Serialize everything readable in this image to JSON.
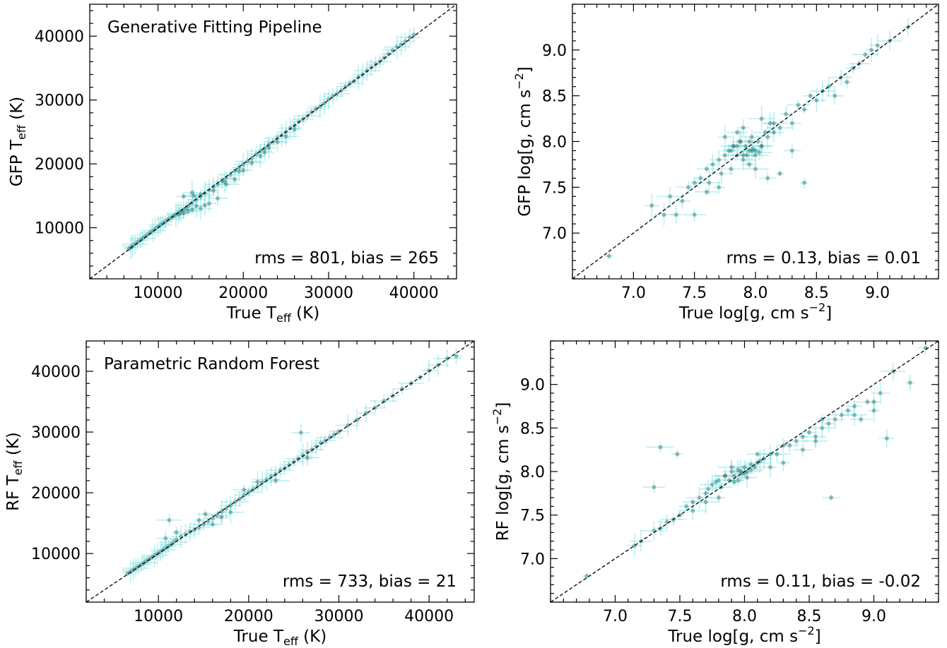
{
  "chart_data": [
    {
      "id": "tl",
      "type": "scatter",
      "title": "Generative Fitting Pipeline",
      "xlabel": "True T",
      "xlabel_sub": "eff",
      "xlabel_suffix": " (K)",
      "ylabel": "GFP T",
      "ylabel_sub": "eff",
      "ylabel_suffix": " (K)",
      "annotation": "rms = 801, bias = 265",
      "xlim": [
        2000,
        45000
      ],
      "ylim": [
        2000,
        45000
      ],
      "xticks": [
        10000,
        20000,
        30000,
        40000
      ],
      "yticks": [
        10000,
        20000,
        30000,
        40000
      ],
      "xtick_labels": [
        "10000",
        "20000",
        "30000",
        "40000"
      ],
      "ytick_labels": [
        "10000",
        "20000",
        "30000",
        "40000"
      ],
      "minor_step": 2000,
      "x": [
        6600,
        6800,
        7000,
        7300,
        7600,
        7900,
        8200,
        8500,
        8800,
        9100,
        9400,
        9700,
        10000,
        10300,
        10600,
        10900,
        11200,
        11500,
        11800,
        12100,
        12400,
        12700,
        13000,
        13300,
        13600,
        14000,
        14500,
        15000,
        15500,
        16000,
        16500,
        17000,
        17500,
        18000,
        18500,
        19000,
        19500,
        20000,
        20500,
        21000,
        21500,
        22000,
        22500,
        23000,
        23500,
        24000,
        24500,
        25000,
        25500,
        26000,
        26500,
        27000,
        27500,
        28000,
        28500,
        29000,
        29500,
        30000,
        30500,
        31000,
        31500,
        32000,
        32500,
        33000,
        33500,
        34000,
        34500,
        35000,
        35500,
        36000,
        36500,
        37000,
        37500,
        38000,
        38500,
        39000,
        39500,
        40000,
        12500,
        13000,
        13500,
        14000,
        14500,
        15000,
        15500,
        16000,
        17000,
        18000,
        19000,
        20000,
        21000,
        22000,
        23000,
        24000,
        25000,
        26000,
        14200,
        15000,
        16500,
        13000,
        14000,
        17800,
        19500,
        22500
      ],
      "y": [
        6700,
        6900,
        7150,
        7450,
        7750,
        8050,
        8350,
        8650,
        8950,
        9250,
        9550,
        9850,
        10150,
        10450,
        10750,
        11000,
        11300,
        11550,
        11800,
        12050,
        12300,
        12550,
        12800,
        13100,
        13500,
        13900,
        14400,
        14900,
        15400,
        15900,
        16400,
        16800,
        17300,
        17800,
        18300,
        18900,
        19400,
        19900,
        20400,
        20900,
        21500,
        22000,
        22400,
        23000,
        23500,
        24000,
        24500,
        25000,
        25600,
        26000,
        26600,
        27000,
        27500,
        28100,
        28600,
        29000,
        29500,
        30100,
        30600,
        31000,
        31500,
        32100,
        32600,
        33000,
        33600,
        34000,
        34600,
        35100,
        35600,
        36000,
        36600,
        37200,
        37800,
        38300,
        38700,
        39200,
        39800,
        40200,
        12100,
        12300,
        12600,
        12800,
        13400,
        13000,
        13500,
        13800,
        14600,
        16800,
        17600,
        19000,
        20200,
        21200,
        22500,
        23400,
        24300,
        25400,
        15000,
        15200,
        15800,
        14900,
        15500,
        17200,
        18800,
        21800
      ],
      "diagonal": true
    },
    {
      "id": "tr",
      "type": "scatter",
      "xlabel": "True log[g,  cm s",
      "xlabel_sup": "−2",
      "xlabel_suffix": "]",
      "ylabel": "GFP log[g,  cm s",
      "ylabel_sup": "−2",
      "ylabel_suffix": "]",
      "annotation": "rms = 0.13, bias = 0.01",
      "xlim": [
        6.5,
        9.5
      ],
      "ylim": [
        6.5,
        9.5
      ],
      "xticks": [
        7.0,
        7.5,
        8.0,
        8.5,
        9.0
      ],
      "yticks": [
        7.0,
        7.5,
        8.0,
        8.5,
        9.0
      ],
      "xtick_labels": [
        "7.0",
        "7.5",
        "8.0",
        "8.5",
        "9.0"
      ],
      "ytick_labels": [
        "7.0",
        "7.5",
        "8.0",
        "8.5",
        "9.0"
      ],
      "minor_step": 0.1,
      "x": [
        6.8,
        7.15,
        7.25,
        7.3,
        7.35,
        7.4,
        7.45,
        7.5,
        7.55,
        7.6,
        7.62,
        7.65,
        7.7,
        7.72,
        7.75,
        7.78,
        7.8,
        7.82,
        7.85,
        7.87,
        7.9,
        7.92,
        7.95,
        7.97,
        8.0,
        8.02,
        8.05,
        8.08,
        8.1,
        8.12,
        8.15,
        8.2,
        8.25,
        8.3,
        8.35,
        8.4,
        8.45,
        8.5,
        8.55,
        8.6,
        8.65,
        8.7,
        8.75,
        8.8,
        8.85,
        8.9,
        8.95,
        9.0,
        9.1,
        9.25,
        7.8,
        7.85,
        7.9,
        7.95,
        8.0,
        8.05,
        7.88,
        7.93,
        7.98,
        8.03,
        7.7,
        8.1,
        7.6,
        8.2,
        7.75,
        8.15,
        8.0,
        7.9,
        8.3,
        7.5,
        8.4,
        7.95,
        7.85,
        8.05,
        7.82,
        7.97
      ],
      "y": [
        6.75,
        7.3,
        7.2,
        7.4,
        7.2,
        7.35,
        7.5,
        7.55,
        7.6,
        7.7,
        7.55,
        7.75,
        7.8,
        7.65,
        7.85,
        7.9,
        7.7,
        7.95,
        7.85,
        8.0,
        7.8,
        7.95,
        7.9,
        8.05,
        7.85,
        8.0,
        7.95,
        8.1,
        8.05,
        8.2,
        8.1,
        8.15,
        8.3,
        8.2,
        8.4,
        8.35,
        8.5,
        8.45,
        8.55,
        8.6,
        8.5,
        8.7,
        8.65,
        8.8,
        8.85,
        8.95,
        9.0,
        9.05,
        9.1,
        9.25,
        7.9,
        7.95,
        7.85,
        8.0,
        7.9,
        7.95,
        8.0,
        7.85,
        7.92,
        7.88,
        7.5,
        7.6,
        7.45,
        7.65,
        8.05,
        8.2,
        7.7,
        8.15,
        7.9,
        7.2,
        7.55,
        7.75,
        8.1,
        8.25,
        7.95,
        7.9
      ],
      "diagonal": true
    },
    {
      "id": "bl",
      "type": "scatter",
      "title": "Parametric Random Forest",
      "xlabel": "True T",
      "xlabel_sub": "eff",
      "xlabel_suffix": " (K)",
      "ylabel": "RF T",
      "ylabel_sub": "eff",
      "ylabel_suffix": " (K)",
      "annotation": "rms = 733, bias = 21",
      "xlim": [
        2000,
        45000
      ],
      "ylim": [
        2000,
        45000
      ],
      "xticks": [
        10000,
        20000,
        30000,
        40000
      ],
      "yticks": [
        10000,
        20000,
        30000,
        40000
      ],
      "xtick_labels": [
        "10000",
        "20000",
        "30000",
        "40000"
      ],
      "ytick_labels": [
        "10000",
        "20000",
        "30000",
        "40000"
      ],
      "minor_step": 2000,
      "x": [
        6600,
        6900,
        7200,
        7500,
        7800,
        8100,
        8400,
        8700,
        9000,
        9300,
        9600,
        9900,
        10200,
        10500,
        10800,
        11100,
        11400,
        11700,
        12000,
        12500,
        13000,
        13500,
        14000,
        14500,
        15000,
        15500,
        16000,
        16500,
        17000,
        17500,
        18000,
        18500,
        19000,
        19500,
        20000,
        20500,
        21000,
        21500,
        22000,
        22500,
        23000,
        23500,
        24000,
        24500,
        25000,
        25500,
        26000,
        26500,
        27000,
        27500,
        28000,
        28500,
        29000,
        29500,
        30000,
        31000,
        32000,
        33000,
        34000,
        35000,
        36000,
        37000,
        38000,
        39000,
        40000,
        41000,
        42000,
        43000,
        10800,
        11200,
        12000,
        15200,
        16000,
        18000,
        21000,
        25800,
        26500,
        14500,
        17000,
        19500,
        23000
      ],
      "y": [
        6700,
        7000,
        7300,
        7600,
        7900,
        8200,
        8500,
        8800,
        9100,
        9400,
        9700,
        10000,
        10300,
        10600,
        10900,
        11200,
        11500,
        11900,
        12300,
        12800,
        13200,
        13600,
        13900,
        14300,
        14800,
        15300,
        15800,
        16300,
        16900,
        17400,
        17900,
        18500,
        19000,
        19600,
        20100,
        20600,
        21100,
        21700,
        22200,
        22700,
        23100,
        23700,
        24100,
        24600,
        25100,
        25600,
        26200,
        26700,
        27100,
        27600,
        28200,
        28600,
        29100,
        29600,
        30100,
        31100,
        32000,
        33100,
        34000,
        35100,
        36000,
        37100,
        38000,
        39000,
        40100,
        41000,
        42100,
        42500,
        12500,
        15500,
        13500,
        16500,
        14800,
        16800,
        21800,
        29900,
        25800,
        15500,
        16000,
        20500,
        22000
      ],
      "diagonal": true
    },
    {
      "id": "br",
      "type": "scatter",
      "xlabel": "True log[g,  cm s",
      "xlabel_sup": "−2",
      "xlabel_suffix": "]",
      "ylabel": "RF log[g,  cm s",
      "ylabel_sup": "−2",
      "ylabel_suffix": "]",
      "annotation": "rms = 0.11, bias = -0.02",
      "xlim": [
        6.5,
        9.5
      ],
      "ylim": [
        6.5,
        9.5
      ],
      "xticks": [
        7.0,
        7.5,
        8.0,
        8.5,
        9.0
      ],
      "yticks": [
        7.0,
        7.5,
        8.0,
        8.5,
        9.0
      ],
      "xtick_labels": [
        "7.0",
        "7.5",
        "8.0",
        "8.5",
        "9.0"
      ],
      "ytick_labels": [
        "7.0",
        "7.5",
        "8.0",
        "8.5",
        "9.0"
      ],
      "minor_step": 0.1,
      "x": [
        6.78,
        7.15,
        7.2,
        7.3,
        7.35,
        7.4,
        7.45,
        7.5,
        7.55,
        7.6,
        7.65,
        7.7,
        7.72,
        7.75,
        7.78,
        7.8,
        7.82,
        7.85,
        7.88,
        7.9,
        7.92,
        7.95,
        7.98,
        8.0,
        8.02,
        8.05,
        8.08,
        8.1,
        8.12,
        8.15,
        8.2,
        8.25,
        8.3,
        8.35,
        8.4,
        8.45,
        8.5,
        8.55,
        8.6,
        8.65,
        8.7,
        8.75,
        8.8,
        8.85,
        8.9,
        8.95,
        9.0,
        9.05,
        9.15,
        9.28,
        9.4,
        7.3,
        7.35,
        7.48,
        8.67,
        8.85,
        9.0,
        9.1,
        7.85,
        7.9,
        7.95,
        8.0,
        8.05,
        7.92,
        7.97,
        8.02,
        7.6,
        8.3,
        8.45,
        8.55,
        8.6,
        7.8,
        8.1,
        7.7,
        8.2
      ],
      "y": [
        6.8,
        7.15,
        7.2,
        7.32,
        7.35,
        7.42,
        7.45,
        7.5,
        7.6,
        7.65,
        7.7,
        7.75,
        7.8,
        7.85,
        7.88,
        7.9,
        7.82,
        7.95,
        7.9,
        8.0,
        7.95,
        8.02,
        7.98,
        8.05,
        8.0,
        8.08,
        8.05,
        8.1,
        8.12,
        8.15,
        8.2,
        8.2,
        8.3,
        8.3,
        8.35,
        8.4,
        8.45,
        8.4,
        8.5,
        8.55,
        8.6,
        8.65,
        8.7,
        8.75,
        8.6,
        8.8,
        8.7,
        8.9,
        9.15,
        9.02,
        9.42,
        7.82,
        8.28,
        8.2,
        7.7,
        8.65,
        8.8,
        8.38,
        7.95,
        8.05,
        7.9,
        7.98,
        8.02,
        7.88,
        8.0,
        7.93,
        7.55,
        8.1,
        8.25,
        8.35,
        8.6,
        7.7,
        8.2,
        7.65,
        8.05
      ],
      "diagonal": true
    }
  ]
}
